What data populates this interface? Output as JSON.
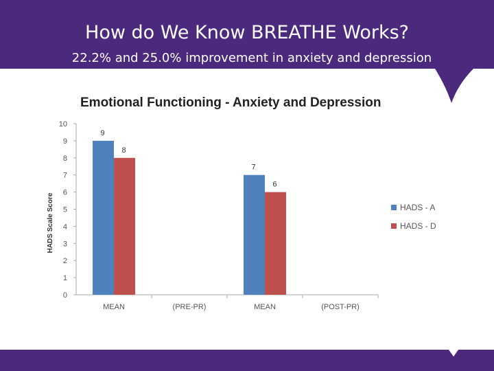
{
  "slide": {
    "title": "How do We Know BREATHE Works?",
    "subtitle": "22.2%  and 25.0% improvement in anxiety and depression"
  },
  "colors": {
    "brand_purple": "#4b2a7d",
    "series_a": "#4f81bd",
    "series_d": "#c0504d"
  },
  "chart_data": {
    "type": "bar",
    "title": "Emotional Functioning - Anxiety and Depression",
    "xlabel": "",
    "ylabel": "HADS Scale Score",
    "ylim": [
      0,
      10
    ],
    "yticks": [
      0,
      1,
      2,
      3,
      4,
      5,
      6,
      7,
      8,
      9,
      10
    ],
    "categories": [
      "MEAN",
      "(PRE-PR)",
      "MEAN",
      "(POST-PR)"
    ],
    "series": [
      {
        "name": "HADS - A",
        "color": "#4f81bd",
        "values": [
          9,
          null,
          7,
          null
        ]
      },
      {
        "name": "HADS - D",
        "color": "#c0504d",
        "values": [
          8,
          null,
          6,
          null
        ]
      }
    ],
    "grid": false,
    "legend": "right"
  }
}
